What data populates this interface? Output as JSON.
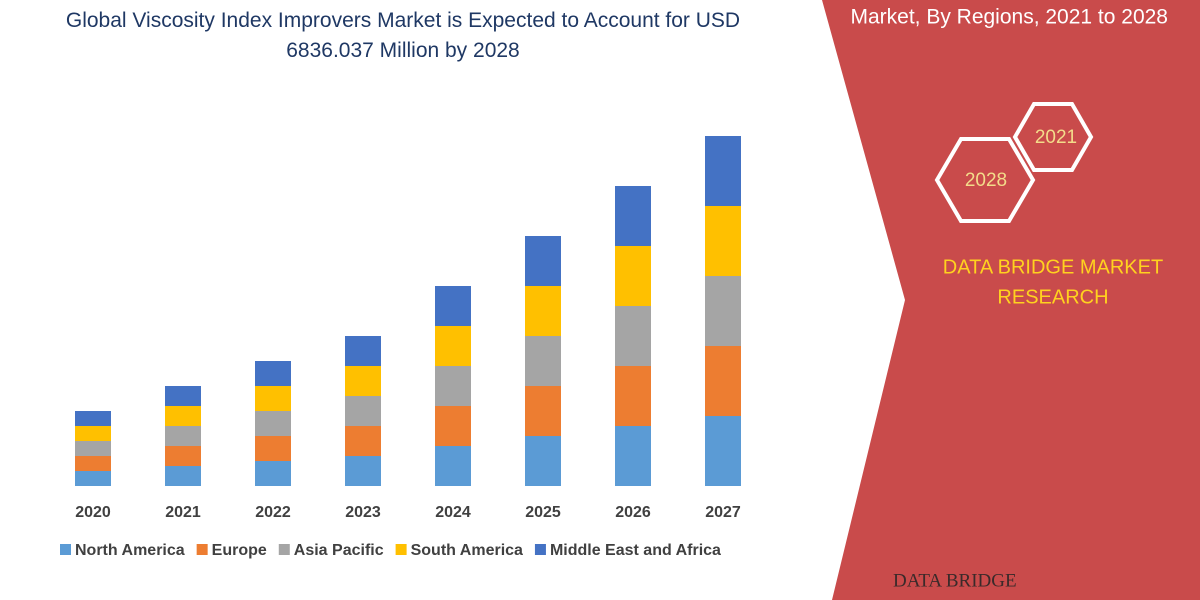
{
  "chart_data": {
    "type": "bar",
    "stacked": true,
    "title": "Global Viscosity Index Improvers Market is Expected to Account for USD 6836.037 Million by 2028",
    "categories": [
      "2020",
      "2021",
      "2022",
      "2023",
      "2024",
      "2025",
      "2026",
      "2027"
    ],
    "series": [
      {
        "name": "North America",
        "color": "#5b9bd5",
        "values": [
          15,
          20,
          25,
          30,
          40,
          50,
          60,
          70
        ]
      },
      {
        "name": "Europe",
        "color": "#ed7d31",
        "values": [
          15,
          20,
          25,
          30,
          40,
          50,
          60,
          70
        ]
      },
      {
        "name": "Asia Pacific",
        "color": "#a5a5a5",
        "values": [
          15,
          20,
          25,
          30,
          40,
          50,
          60,
          70
        ]
      },
      {
        "name": "South America",
        "color": "#ffc000",
        "values": [
          15,
          20,
          25,
          30,
          40,
          50,
          60,
          70
        ]
      },
      {
        "name": "Middle East and Africa",
        "color": "#4472c4",
        "values": [
          15,
          20,
          25,
          30,
          40,
          50,
          60,
          70
        ]
      }
    ]
  },
  "side_panel": {
    "subtitle": "Market, By Regions, 2021 to 2028",
    "badges": [
      "2021",
      "2028"
    ],
    "brand_lines": [
      "DATA BRIDGE MARKET",
      "RESEARCH"
    ],
    "footer_logo": "DATA BRIDGE"
  }
}
